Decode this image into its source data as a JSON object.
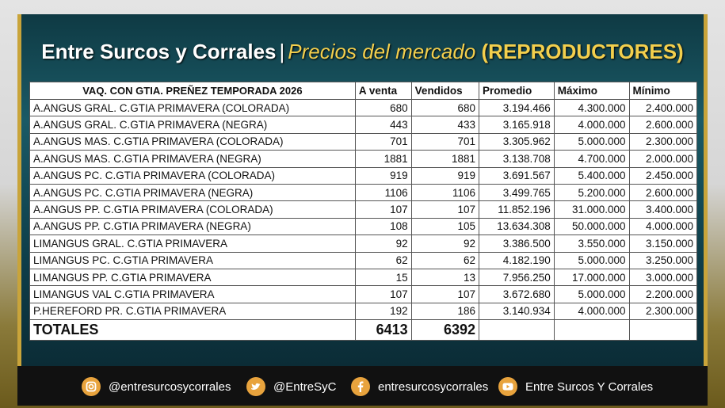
{
  "header": {
    "brand": "Entre Surcos y Corrales",
    "separator": "|",
    "subtitle": "Precios del mercado",
    "category": "(REPRODUCTORES)"
  },
  "table": {
    "columns": [
      "VAQ. CON GTIA. PREÑEZ  TEMPORADA 2026",
      "A venta",
      "Vendidos",
      "Promedio",
      "Máximo",
      "Mínimo"
    ],
    "rows": [
      [
        "A.ANGUS GRAL. C.GTIA PRIMAVERA (COLORADA)",
        "680",
        "680",
        "3.194.466",
        "4.300.000",
        "2.400.000"
      ],
      [
        "A.ANGUS GRAL. C.GTIA PRIMAVERA (NEGRA)",
        "443",
        "433",
        "3.165.918",
        "4.000.000",
        "2.600.000"
      ],
      [
        "A.ANGUS MAS. C.GTIA PRIMAVERA (COLORADA)",
        "701",
        "701",
        "3.305.962",
        "5.000.000",
        "2.300.000"
      ],
      [
        "A.ANGUS MAS. C.GTIA PRIMAVERA (NEGRA)",
        "1881",
        "1881",
        "3.138.708",
        "4.700.000",
        "2.000.000"
      ],
      [
        "A.ANGUS PC. C.GTIA PRIMAVERA (COLORADA)",
        "919",
        "919",
        "3.691.567",
        "5.400.000",
        "2.450.000"
      ],
      [
        "A.ANGUS PC. C.GTIA PRIMAVERA (NEGRA)",
        "1106",
        "1106",
        "3.499.765",
        "5.200.000",
        "2.600.000"
      ],
      [
        "A.ANGUS PP. C.GTIA PRIMAVERA (COLORADA)",
        "107",
        "107",
        "11.852.196",
        "31.000.000",
        "3.400.000"
      ],
      [
        "A.ANGUS PP. C.GTIA PRIMAVERA (NEGRA)",
        "108",
        "105",
        "13.634.308",
        "50.000.000",
        "4.000.000"
      ],
      [
        "LIMANGUS GRAL. C.GTIA PRIMAVERA",
        "92",
        "92",
        "3.386.500",
        "3.550.000",
        "3.150.000"
      ],
      [
        "LIMANGUS PC. C.GTIA PRIMAVERA",
        "62",
        "62",
        "4.182.190",
        "5.000.000",
        "3.250.000"
      ],
      [
        "LIMANGUS PP. C.GTIA PRIMAVERA",
        "15",
        "13",
        "7.956.250",
        "17.000.000",
        "3.000.000"
      ],
      [
        "LIMANGUS VAL C.GTIA PRIMAVERA",
        "107",
        "107",
        "3.672.680",
        "5.000.000",
        "2.200.000"
      ],
      [
        "P.HEREFORD PR. C.GTIA PRIMAVERA",
        "192",
        "186",
        "3.140.934",
        "4.000.000",
        "2.300.000"
      ]
    ],
    "totals": [
      "TOTALES",
      "6413",
      "6392"
    ]
  },
  "footer": {
    "instagram": "@entresurcosycorrales",
    "twitter": "@EntreSyC",
    "facebook": "entresurcosycorrales",
    "youtube": "Entre Surcos Y Corrales"
  }
}
